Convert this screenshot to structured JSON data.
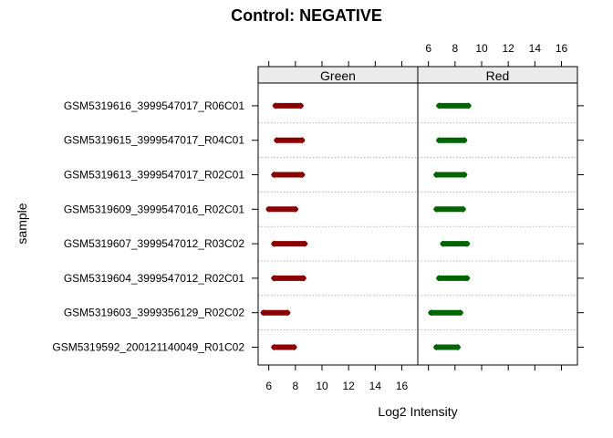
{
  "chart_data": {
    "type": "scatter",
    "title": "Control: NEGATIVE",
    "xlabel": "Log2 Intensity",
    "ylabel": "sample",
    "xlim": [
      5.2,
      17.2
    ],
    "xticks": [
      6,
      8,
      10,
      12,
      14,
      16
    ],
    "panels": [
      "Green",
      "Red"
    ],
    "colors": {
      "Green": "#8b0000",
      "Red": "#006400"
    },
    "grid": "dotted horizontal lines between samples",
    "samples": [
      "GSM5319616_3999547017_R06C01",
      "GSM5319615_3999547017_R04C01",
      "GSM5319613_3999547017_R02C01",
      "GSM5319609_3999547016_R02C01",
      "GSM5319607_3999547012_R03C02",
      "GSM5319604_3999547012_R02C01",
      "GSM5319603_3999356129_R02C02",
      "GSM5319592_200121140049_R01C02"
    ],
    "series": [
      {
        "name": "Green",
        "ranges": [
          [
            6.5,
            8.4
          ],
          [
            6.6,
            8.5
          ],
          [
            6.4,
            8.5
          ],
          [
            6.0,
            8.0
          ],
          [
            6.4,
            8.7
          ],
          [
            6.4,
            8.6
          ],
          [
            5.6,
            7.4
          ],
          [
            6.4,
            7.9
          ]
        ]
      },
      {
        "name": "Red",
        "ranges": [
          [
            6.8,
            9.0
          ],
          [
            6.8,
            8.7
          ],
          [
            6.6,
            8.7
          ],
          [
            6.6,
            8.6
          ],
          [
            7.1,
            8.9
          ],
          [
            6.8,
            8.9
          ],
          [
            6.2,
            8.4
          ],
          [
            6.6,
            8.2
          ]
        ]
      }
    ]
  }
}
